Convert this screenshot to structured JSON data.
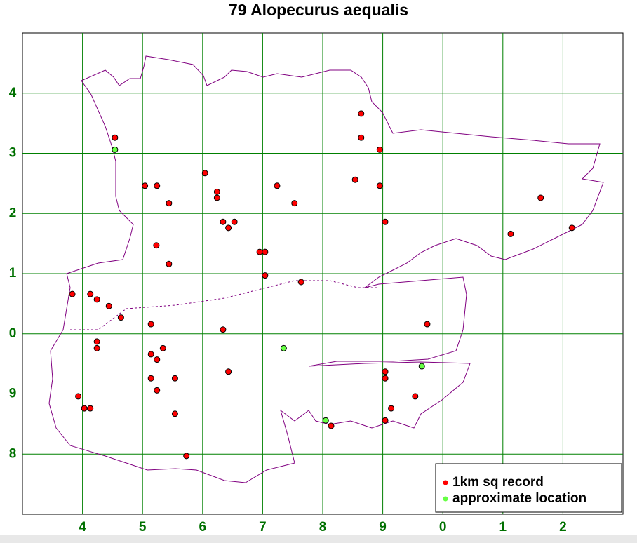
{
  "chart_data": {
    "type": "scatter",
    "title": "79 Alopecurus aequalis",
    "xlim": [
      3,
      13
    ],
    "ylim": [
      7,
      15
    ],
    "grid": true,
    "xticks": [
      4,
      5,
      6,
      7,
      8,
      9,
      {
        "value": 10,
        "label": "0"
      },
      {
        "value": 11,
        "label": "1"
      },
      {
        "value": 12,
        "label": "2"
      }
    ],
    "yticks": [
      8,
      9,
      {
        "value": 10,
        "label": "0"
      },
      {
        "value": 11,
        "label": "1"
      },
      {
        "value": 12,
        "label": "2"
      },
      {
        "value": 13,
        "label": "3"
      },
      {
        "value": 14,
        "label": "4"
      }
    ],
    "series": [
      {
        "name": "1km sq record",
        "color": "#ff0000",
        "x": [
          4.54,
          6.04,
          5.04,
          5.24,
          6.24,
          6.24,
          5.44,
          6.34,
          6.53,
          6.43,
          5.23,
          5.44,
          6.95,
          7.04,
          7.04,
          7.64,
          3.83,
          4.13,
          4.24,
          4.44,
          4.64,
          5.14,
          6.34,
          4.24,
          4.24,
          5.34,
          5.14,
          5.24,
          6.43,
          5.14,
          5.54,
          5.24,
          3.93,
          4.03,
          4.13,
          5.54,
          5.73,
          8.14,
          7.24,
          7.53,
          8.64,
          8.64,
          8.95,
          8.54,
          8.95,
          9.04,
          9.74,
          9.04,
          9.04,
          9.54,
          9.14,
          9.04,
          11.63,
          11.13,
          12.15
        ],
        "y": [
          13.26,
          12.67,
          12.46,
          12.46,
          12.36,
          12.26,
          12.17,
          11.86,
          11.86,
          11.76,
          11.47,
          11.16,
          11.36,
          11.36,
          10.97,
          10.86,
          10.66,
          10.66,
          10.57,
          10.46,
          10.27,
          10.16,
          10.07,
          9.87,
          9.76,
          9.76,
          9.66,
          9.57,
          9.37,
          9.26,
          9.26,
          9.06,
          8.96,
          8.76,
          8.76,
          8.67,
          7.97,
          8.47,
          12.46,
          12.17,
          13.66,
          13.26,
          13.06,
          12.56,
          12.46,
          11.86,
          10.16,
          9.37,
          9.26,
          8.96,
          8.76,
          8.56,
          12.26,
          11.66,
          11.76
        ]
      },
      {
        "name": "approximate location",
        "color": "#66ff44",
        "x": [
          4.54,
          7.35,
          9.65,
          8.05
        ],
        "y": [
          13.06,
          9.76,
          9.46,
          8.56
        ]
      }
    ]
  }
}
